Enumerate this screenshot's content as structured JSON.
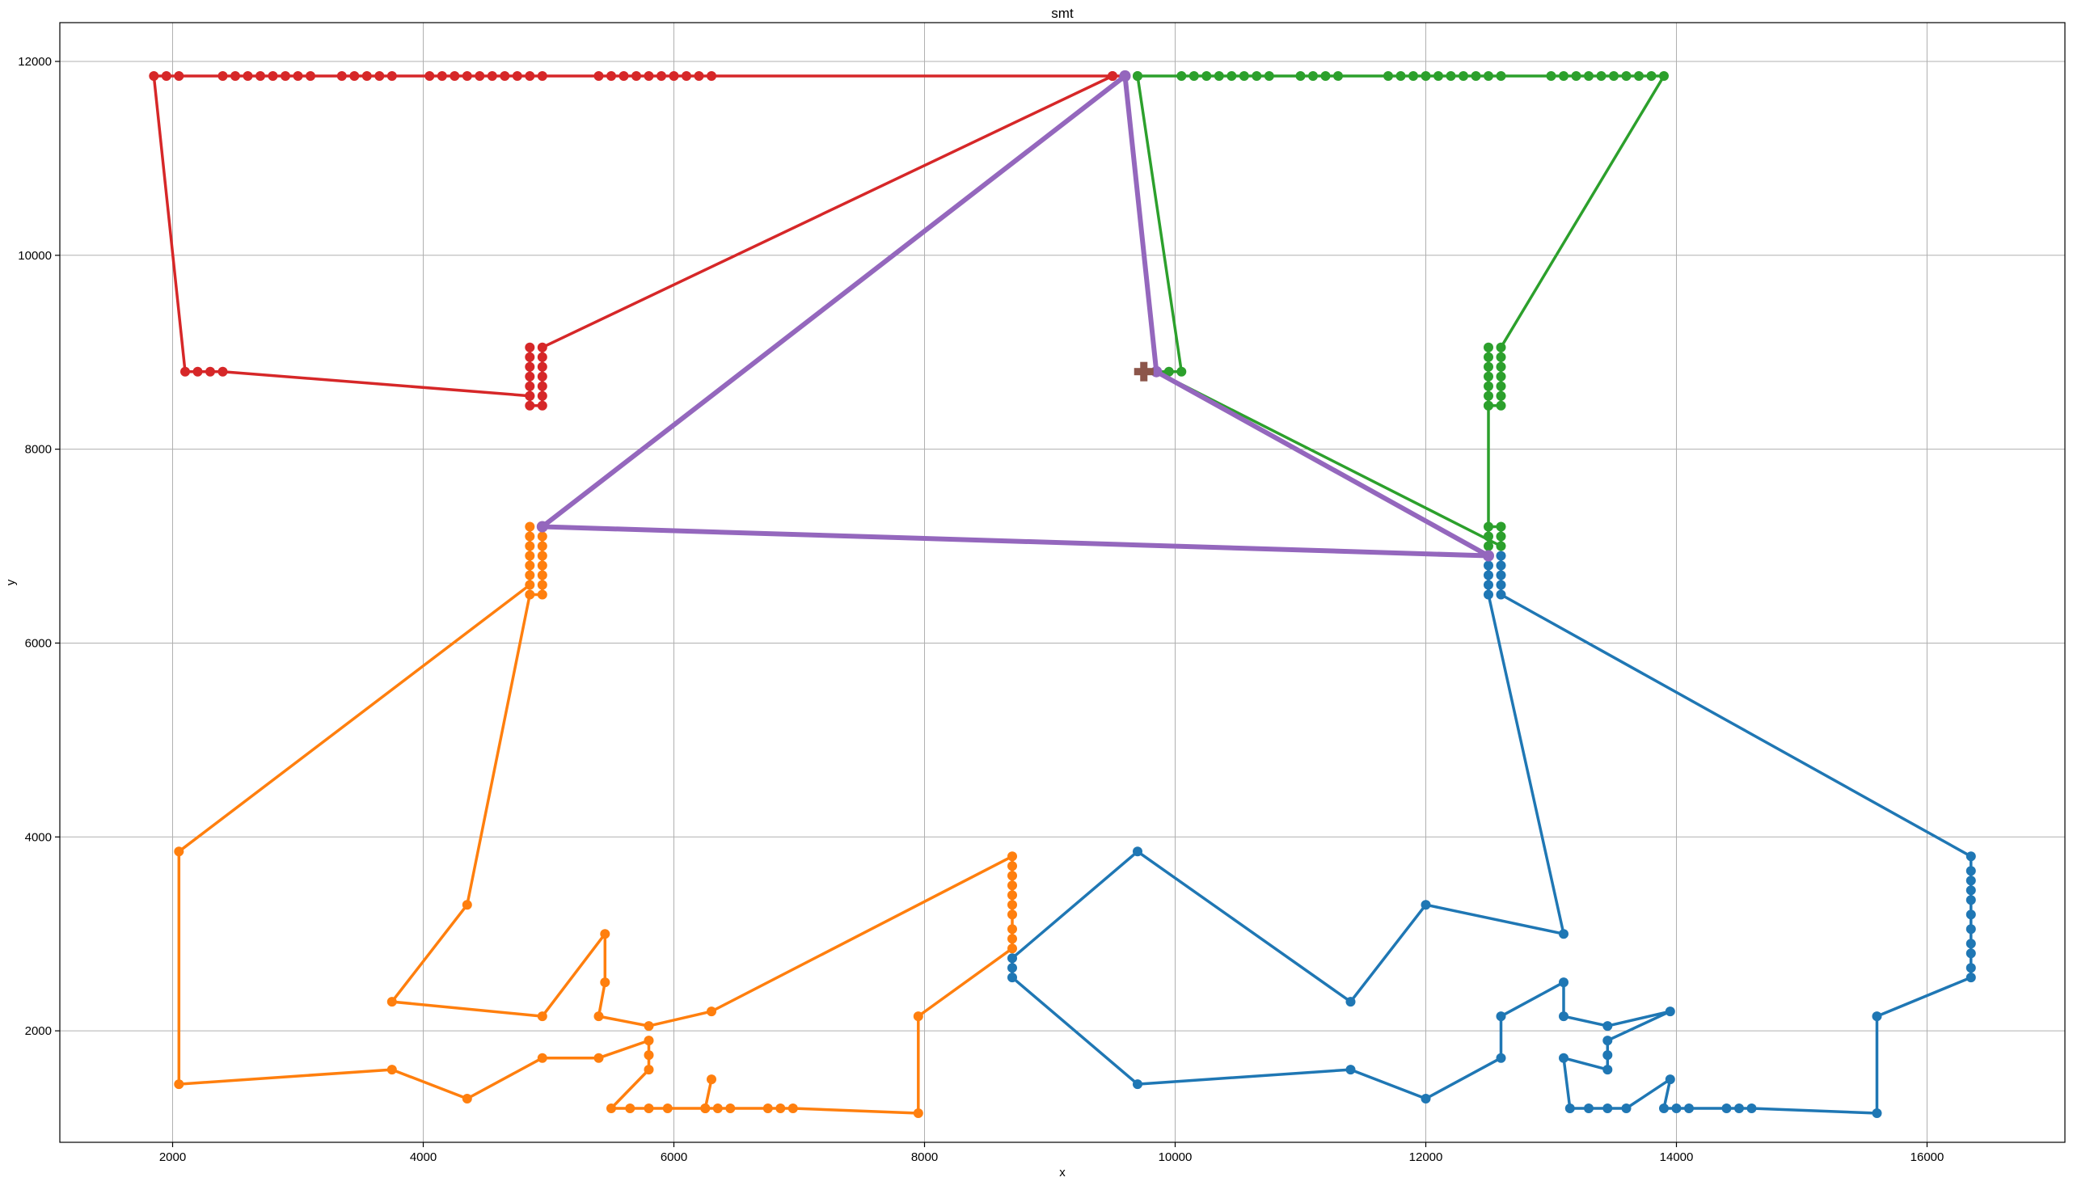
{
  "chart_data": {
    "type": "line",
    "title": "smt",
    "xlabel": "x",
    "ylabel": "y",
    "xlim": [
      1100,
      17100
    ],
    "ylim": [
      850,
      12400
    ],
    "xticks": [
      2000,
      4000,
      6000,
      8000,
      10000,
      12000,
      14000,
      16000
    ],
    "yticks": [
      2000,
      4000,
      6000,
      8000,
      10000,
      12000
    ],
    "grid": true,
    "colors": {
      "blue": "#1f77b4",
      "orange": "#ff7f0e",
      "green": "#2ca02c",
      "red": "#d62728",
      "purple": "#9467bd",
      "brown": "#8c564b"
    },
    "series": [
      {
        "color": "#1f77b4",
        "points": [
          [
            12500,
            6900
          ],
          [
            12500,
            6800
          ],
          [
            12500,
            6700
          ],
          [
            12500,
            6600
          ],
          [
            12500,
            6500
          ],
          [
            13100,
            3000
          ],
          [
            12000,
            3300
          ],
          [
            11400,
            2300
          ],
          [
            9700,
            3850
          ],
          [
            8700,
            2750
          ],
          [
            8700,
            2650
          ],
          [
            8700,
            2550
          ],
          [
            9700,
            1450
          ],
          [
            11400,
            1600
          ],
          [
            12000,
            1300
          ],
          [
            12600,
            1720
          ],
          [
            12600,
            2150
          ],
          [
            13100,
            2500
          ],
          [
            13100,
            2150
          ],
          [
            13450,
            2050
          ],
          [
            13950,
            2200
          ],
          [
            13450,
            1900
          ],
          [
            13450,
            1750
          ],
          [
            13450,
            1600
          ],
          [
            13100,
            1720
          ],
          [
            13150,
            1200
          ],
          [
            13300,
            1200
          ],
          [
            13450,
            1200
          ],
          [
            13600,
            1200
          ],
          [
            13950,
            1500
          ],
          [
            13900,
            1200
          ],
          [
            14000,
            1200
          ],
          [
            14100,
            1200
          ],
          [
            14400,
            1200
          ],
          [
            14500,
            1200
          ],
          [
            14600,
            1200
          ],
          [
            15600,
            1150
          ],
          [
            15600,
            2150
          ],
          [
            16350,
            2550
          ],
          [
            16350,
            2650
          ],
          [
            16350,
            2800
          ],
          [
            16350,
            2900
          ],
          [
            16350,
            3050
          ],
          [
            16350,
            3200
          ],
          [
            16350,
            3350
          ],
          [
            16350,
            3450
          ],
          [
            16350,
            3550
          ],
          [
            16350,
            3650
          ],
          [
            16350,
            3800
          ],
          [
            12600,
            6500
          ],
          [
            12600,
            6600
          ],
          [
            12600,
            6700
          ],
          [
            12600,
            6800
          ],
          [
            12600,
            6900
          ]
        ]
      },
      {
        "color": "#ff7f0e",
        "points": [
          [
            4950,
            7200
          ],
          [
            4950,
            7100
          ],
          [
            4950,
            7000
          ],
          [
            4950,
            6900
          ],
          [
            4950,
            6800
          ],
          [
            4950,
            6700
          ],
          [
            4950,
            6600
          ],
          [
            4950,
            6500
          ],
          [
            4850,
            6500
          ],
          [
            4350,
            3300
          ],
          [
            3750,
            2300
          ],
          [
            4950,
            2150
          ],
          [
            5450,
            3000
          ],
          [
            5450,
            2500
          ],
          [
            5400,
            2150
          ],
          [
            5800,
            2050
          ],
          [
            6300,
            2200
          ],
          [
            8700,
            3800
          ],
          [
            8700,
            3700
          ],
          [
            8700,
            3600
          ],
          [
            8700,
            3500
          ],
          [
            8700,
            3400
          ],
          [
            8700,
            3300
          ],
          [
            8700,
            3200
          ],
          [
            8700,
            3050
          ],
          [
            8700,
            2950
          ],
          [
            8700,
            2850
          ],
          [
            7950,
            2150
          ],
          [
            7950,
            1150
          ],
          [
            6950,
            1200
          ],
          [
            6850,
            1200
          ],
          [
            6750,
            1200
          ],
          [
            6450,
            1200
          ],
          [
            6350,
            1200
          ],
          [
            6250,
            1200
          ],
          [
            6300,
            1500
          ],
          [
            6250,
            1200
          ],
          [
            5950,
            1200
          ],
          [
            5800,
            1200
          ],
          [
            5650,
            1200
          ],
          [
            5500,
            1200
          ],
          [
            5800,
            1600
          ],
          [
            5800,
            1750
          ],
          [
            5800,
            1900
          ],
          [
            5400,
            1720
          ],
          [
            4950,
            1720
          ],
          [
            4350,
            1300
          ],
          [
            3750,
            1600
          ],
          [
            2050,
            1450
          ],
          [
            2050,
            3850
          ],
          [
            4850,
            6600
          ],
          [
            4850,
            6700
          ],
          [
            4850,
            6800
          ],
          [
            4850,
            6900
          ],
          [
            4850,
            7000
          ],
          [
            4850,
            7100
          ],
          [
            4850,
            7200
          ]
        ]
      },
      {
        "color": "#2ca02c",
        "points": [
          [
            12500,
            6900
          ],
          [
            12500,
            7000
          ],
          [
            12500,
            7100
          ],
          [
            12500,
            7200
          ],
          [
            12600,
            7200
          ],
          [
            12600,
            7100
          ],
          [
            12600,
            7000
          ],
          [
            9850,
            8800
          ],
          [
            9950,
            8800
          ],
          [
            10050,
            8800
          ],
          [
            9700,
            11850
          ],
          [
            9700,
            11850
          ],
          [
            10050,
            11850
          ],
          [
            10150,
            11850
          ],
          [
            10250,
            11850
          ],
          [
            10350,
            11850
          ],
          [
            10450,
            11850
          ],
          [
            10550,
            11850
          ],
          [
            10650,
            11850
          ],
          [
            10750,
            11850
          ],
          [
            11000,
            11850
          ],
          [
            11100,
            11850
          ],
          [
            11200,
            11850
          ],
          [
            11300,
            11850
          ],
          [
            11700,
            11850
          ],
          [
            11800,
            11850
          ],
          [
            11900,
            11850
          ],
          [
            12000,
            11850
          ],
          [
            12100,
            11850
          ],
          [
            12200,
            11850
          ],
          [
            12300,
            11850
          ],
          [
            12400,
            11850
          ],
          [
            12500,
            11850
          ],
          [
            12600,
            11850
          ],
          [
            13000,
            11850
          ],
          [
            13100,
            11850
          ],
          [
            13200,
            11850
          ],
          [
            13300,
            11850
          ],
          [
            13400,
            11850
          ],
          [
            13500,
            11850
          ],
          [
            13600,
            11850
          ],
          [
            13700,
            11850
          ],
          [
            13800,
            11850
          ],
          [
            13900,
            11850
          ],
          [
            12600,
            9050
          ],
          [
            12600,
            8950
          ],
          [
            12600,
            8850
          ],
          [
            12600,
            8750
          ],
          [
            12600,
            8650
          ],
          [
            12600,
            8550
          ],
          [
            12600,
            8450
          ],
          [
            12500,
            8450
          ],
          [
            12500,
            8550
          ],
          [
            12500,
            8650
          ],
          [
            12500,
            8750
          ],
          [
            12500,
            8850
          ],
          [
            12500,
            8950
          ],
          [
            12500,
            9050
          ],
          [
            12500,
            8450
          ],
          [
            12500,
            6900
          ]
        ]
      },
      {
        "color": "#d62728",
        "points": [
          [
            9600,
            11850
          ],
          [
            9500,
            11850
          ],
          [
            4950,
            9050
          ],
          [
            4950,
            8950
          ],
          [
            4950,
            8850
          ],
          [
            4950,
            8750
          ],
          [
            4950,
            8650
          ],
          [
            4950,
            8550
          ],
          [
            4950,
            8450
          ],
          [
            4850,
            8450
          ],
          [
            4850,
            8550
          ],
          [
            4850,
            8650
          ],
          [
            4850,
            8750
          ],
          [
            4850,
            8850
          ],
          [
            4850,
            8950
          ],
          [
            4850,
            9050
          ],
          [
            4850,
            8550
          ],
          [
            2400,
            8800
          ],
          [
            2300,
            8800
          ],
          [
            2200,
            8800
          ],
          [
            2100,
            8800
          ],
          [
            1850,
            11850
          ],
          [
            1950,
            11850
          ],
          [
            2050,
            11850
          ],
          [
            2400,
            11850
          ],
          [
            2500,
            11850
          ],
          [
            2600,
            11850
          ],
          [
            2700,
            11850
          ],
          [
            2800,
            11850
          ],
          [
            2900,
            11850
          ],
          [
            3000,
            11850
          ],
          [
            3100,
            11850
          ],
          [
            3350,
            11850
          ],
          [
            3450,
            11850
          ],
          [
            3550,
            11850
          ],
          [
            3650,
            11850
          ],
          [
            3750,
            11850
          ],
          [
            4050,
            11850
          ],
          [
            4150,
            11850
          ],
          [
            4250,
            11850
          ],
          [
            4350,
            11850
          ],
          [
            4450,
            11850
          ],
          [
            4550,
            11850
          ],
          [
            4650,
            11850
          ],
          [
            4750,
            11850
          ],
          [
            4850,
            11850
          ],
          [
            4950,
            11850
          ],
          [
            5400,
            11850
          ],
          [
            5500,
            11850
          ],
          [
            5600,
            11850
          ],
          [
            5700,
            11850
          ],
          [
            5800,
            11850
          ],
          [
            5900,
            11850
          ],
          [
            6000,
            11850
          ],
          [
            6100,
            11850
          ],
          [
            6200,
            11850
          ],
          [
            6300,
            11850
          ],
          [
            9500,
            11850
          ],
          [
            9600,
            11850
          ]
        ]
      },
      {
        "color": "#9467bd",
        "width": 6,
        "points": [
          [
            9600,
            11850
          ],
          [
            9850,
            8800
          ],
          [
            12500,
            6900
          ],
          [
            4950,
            7200
          ],
          [
            9600,
            11850
          ]
        ]
      }
    ],
    "markers": [
      {
        "color": "#8c564b",
        "shape": "plus",
        "x": 9750,
        "y": 8800
      }
    ]
  }
}
